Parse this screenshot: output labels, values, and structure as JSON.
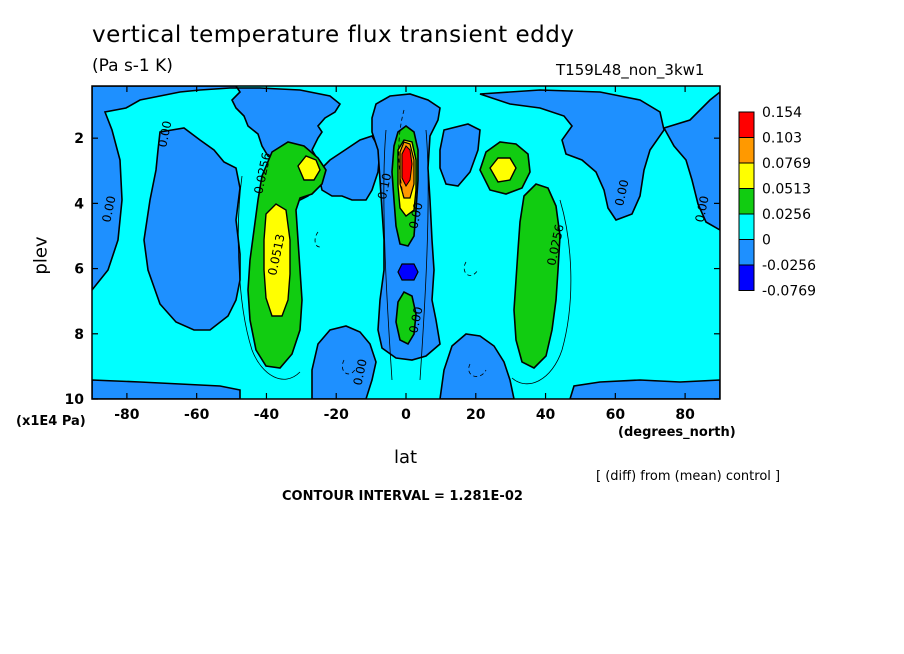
{
  "chart_data": {
    "type": "heatmap",
    "title": "vertical temperature flux transient eddy",
    "units": "(Pa s-1 K)",
    "run_label": "T159L48_non_3kw1",
    "xlabel": "lat",
    "xlabel_units": "(degrees_north)",
    "ylabel": "plev",
    "ylabel_units": "(x1E4 Pa)",
    "diff_note": "[ (diff) from (mean) control ]",
    "contour_interval": "CONTOUR INTERVAL = 1.281E-02",
    "xlim": [
      -90,
      90
    ],
    "ylim": [
      10,
      0.4
    ],
    "x_ticks": [
      "-80",
      "-60",
      "-40",
      "-20",
      "0",
      "20",
      "40",
      "60",
      "80"
    ],
    "y_ticks": [
      "2",
      "4",
      "6",
      "8",
      "10"
    ],
    "colorbar": {
      "levels": [
        "0.154",
        "0.103",
        "0.0769",
        "0.0513",
        "0.0256",
        "0",
        "-0.0256",
        "-0.0769"
      ],
      "colors": [
        "#ff0000",
        "#ff9900",
        "#ffff00",
        "#11cc11",
        "#00ffff",
        "#1e90ff",
        "#0000ff"
      ]
    },
    "contour_labels": [
      {
        "text": "0.00",
        "lat": -68,
        "plev": 1.9
      },
      {
        "text": "0.0256",
        "lat": -40,
        "plev": 3.1
      },
      {
        "text": "0.00",
        "lat": -84,
        "plev": 4.2
      },
      {
        "text": "0.0513",
        "lat": -36,
        "plev": 5.6
      },
      {
        "text": "0.10",
        "lat": -5,
        "plev": 3.5
      },
      {
        "text": "0.00",
        "lat": 4,
        "plev": 4.4
      },
      {
        "text": "0.00",
        "lat": 4,
        "plev": 7.6
      },
      {
        "text": "0.00",
        "lat": -12,
        "plev": 9.2
      },
      {
        "text": "0.0256",
        "lat": 44,
        "plev": 5.3
      },
      {
        "text": "0.00",
        "lat": 63,
        "plev": 3.7
      },
      {
        "text": "0.00",
        "lat": 86,
        "plev": 4.2
      }
    ],
    "features": [
      {
        "type": "positive_column",
        "lat": -38,
        "plev_range": [
          2,
          8.5
        ],
        "max": 0.0769
      },
      {
        "type": "positive_column",
        "lat": 0,
        "plev_range": [
          1.6,
          8.2
        ],
        "max": 0.154
      },
      {
        "type": "positive_column",
        "lat": 33,
        "plev_range": [
          2,
          8.7
        ],
        "max": 0.0769
      },
      {
        "type": "negative_patch",
        "lat": 0,
        "plev": 6.1,
        "min": -0.0769
      }
    ]
  }
}
